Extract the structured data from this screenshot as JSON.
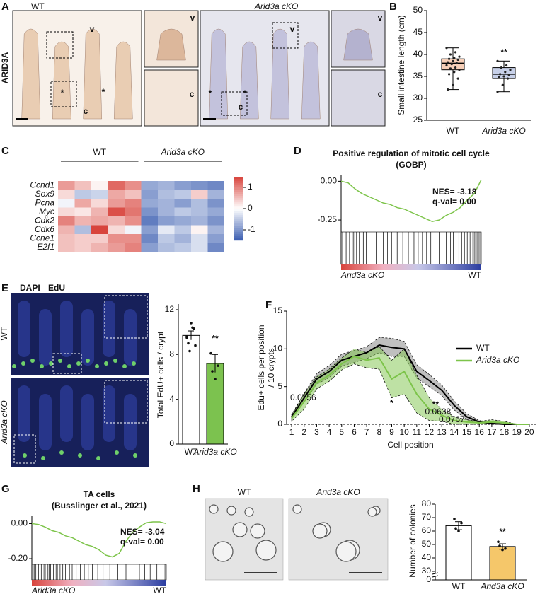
{
  "panel_labels": [
    "A",
    "B",
    "C",
    "D",
    "E",
    "F",
    "G",
    "H"
  ],
  "a": {
    "stain": "ARID3A",
    "wt": "WT",
    "cko": "Arid3a cKO",
    "markers": [
      "v",
      "*",
      "*",
      "c",
      "v",
      "c",
      "v",
      "*",
      "*",
      "c",
      "v",
      "c"
    ]
  },
  "b": {
    "type": "box",
    "ylabel": "Small intestine length (cm)",
    "categories": [
      "WT",
      "Arid3a cKO"
    ],
    "colors": [
      "#f6cfb8",
      "#c7d0e8"
    ],
    "ylim": [
      25,
      50
    ],
    "yticks": [
      25,
      30,
      35,
      40,
      45,
      50
    ],
    "significance": "**",
    "boxes": [
      {
        "min": 32,
        "q1": 36.5,
        "median": 38,
        "q3": 39,
        "max": 41.5,
        "points": [
          41.5,
          40.5,
          40,
          39.5,
          39.2,
          39,
          38.8,
          38.5,
          38.2,
          38,
          37.8,
          37.5,
          37,
          36.8,
          36.5,
          36,
          35.5,
          34.5,
          33,
          32
        ]
      },
      {
        "min": 31.5,
        "q1": 34.5,
        "median": 35.5,
        "q3": 37,
        "max": 38.5,
        "points": [
          38.5,
          37.5,
          37,
          36.5,
          36,
          35.5,
          35.3,
          35,
          34.8,
          34.5,
          33,
          31.5
        ]
      }
    ]
  },
  "c": {
    "type": "heatmap",
    "groups": [
      "WT",
      "Arid3a cKO"
    ],
    "rows": [
      "Ccnd1",
      "Sox9",
      "Pcna",
      "Myc",
      "Cdk2",
      "Cdk6",
      "Ccne1",
      "E2f1"
    ],
    "values": [
      [
        0.8,
        0.5,
        0.1,
        1.2,
        0.9,
        -0.8,
        -0.7,
        -0.9,
        -1.0,
        -1.1
      ],
      [
        0.3,
        -0.5,
        -0.4,
        0.7,
        0.5,
        -0.9,
        -0.6,
        -0.5,
        0.4,
        -0.7
      ],
      [
        -0.1,
        0.7,
        0.3,
        0.8,
        1.0,
        -0.8,
        -0.7,
        -0.9,
        -0.6,
        -1.0
      ],
      [
        0.3,
        0.2,
        0.6,
        1.4,
        1.1,
        -1.0,
        -0.7,
        -0.5,
        -0.6,
        -0.8
      ],
      [
        1.0,
        0.6,
        0.7,
        0.6,
        0.9,
        -1.2,
        -0.9,
        -0.8,
        -0.7,
        -1.0
      ],
      [
        0.6,
        -0.6,
        1.5,
        0.3,
        -0.1,
        -0.9,
        -0.2,
        -0.5,
        0.1,
        -0.7
      ],
      [
        0.5,
        0.4,
        0.4,
        0.9,
        0.9,
        -1.1,
        -0.5,
        -0.7,
        -0.3,
        -0.9
      ],
      [
        0.5,
        0.4,
        0.6,
        0.8,
        1.0,
        -0.9,
        -0.6,
        -0.5,
        -0.3,
        -1.1
      ]
    ],
    "colormap": [
      "#3a5db0",
      "#ffffff",
      "#d8443c"
    ],
    "clim": [
      -1.5,
      1.5
    ],
    "colorbar_ticks": [
      1,
      0,
      -1
    ]
  },
  "d": {
    "type": "gsea",
    "title": "Positive regulation of mitotic cell cycle",
    "subtitle": "(GOBP)",
    "nes": "NES= -3.18",
    "qval": "q-val= 0.00",
    "color": "#7dc44a",
    "x": [
      0,
      5,
      10,
      15,
      20,
      25,
      30,
      35,
      40,
      45,
      50,
      55,
      60,
      65,
      70,
      75,
      80,
      85,
      90,
      95,
      100
    ],
    "values": [
      0,
      -0.01,
      -0.05,
      -0.08,
      -0.1,
      -0.12,
      -0.14,
      -0.15,
      -0.17,
      -0.18,
      -0.2,
      -0.22,
      -0.24,
      -0.26,
      -0.25,
      -0.22,
      -0.2,
      -0.17,
      -0.12,
      -0.08,
      0.01
    ],
    "xlim": [
      0,
      100
    ],
    "ylim": [
      -0.3,
      0.02
    ],
    "yticks": [
      {
        "value": 0,
        "label": "0.00"
      },
      {
        "value": -0.25,
        "label": "-0.25"
      }
    ],
    "hits": [
      1,
      3,
      4,
      6,
      8,
      9,
      11,
      13,
      15,
      16,
      18,
      20,
      22,
      25,
      27,
      30,
      33,
      36,
      40,
      44,
      48,
      52,
      55,
      58,
      61,
      64,
      67,
      70,
      72,
      75,
      78,
      80,
      82,
      84,
      86,
      88,
      90,
      92,
      94,
      95,
      96,
      97,
      98,
      99
    ],
    "left_label": "Arid3a cKO",
    "right_label": "WT"
  },
  "e": {
    "type": "bar",
    "stains": [
      "DAPI",
      "EdU"
    ],
    "stain_colors": [
      "#3b4fc4",
      "#6fd06a"
    ],
    "rows": [
      "WT",
      "Arid3a cKO"
    ],
    "ylabel": "Total EdU+ cells / crypt",
    "categories": [
      "WT",
      "Arid3a cKO"
    ],
    "values": [
      9.7,
      7.2
    ],
    "errors": [
      0.4,
      0.8
    ],
    "points": [
      [
        9.5,
        10.3,
        10.8,
        9.0,
        8.8,
        10.4,
        8.3,
        9.6
      ],
      [
        8.1,
        7.0,
        5.8,
        6.5
      ]
    ],
    "colors": [
      "#ffffff",
      "#7cc24f"
    ],
    "ylim": [
      0,
      12.5
    ],
    "yticks": [
      0,
      4,
      8,
      12
    ],
    "significance": "**"
  },
  "f": {
    "type": "line",
    "ylabel": [
      "Edu+ cells per position",
      "/ 10 crypts"
    ],
    "xlabel": "Cell position",
    "x": [
      1,
      2,
      3,
      4,
      5,
      6,
      7,
      8,
      9,
      10,
      11,
      12,
      13,
      14,
      15,
      16,
      17,
      18,
      19,
      20
    ],
    "xlim": [
      0.6,
      20.4
    ],
    "xticks": [
      1,
      2,
      3,
      4,
      5,
      6,
      7,
      8,
      9,
      10,
      11,
      12,
      13,
      14,
      15,
      16,
      17,
      18,
      19,
      20
    ],
    "ylim": [
      0,
      15
    ],
    "yticks": [
      0,
      5,
      10,
      15
    ],
    "series": [
      {
        "name": "WT",
        "color": "#000000",
        "values": [
          1,
          3.5,
          6,
          7,
          8.5,
          9,
          9.5,
          10.5,
          10.2,
          10,
          7,
          5.8,
          4.5,
          2.5,
          1,
          0.3,
          0.1,
          0,
          0,
          0
        ],
        "error": [
          0.3,
          0.6,
          0.7,
          0.8,
          0.8,
          0.8,
          0.8,
          1.0,
          1.2,
          1.0,
          0.9,
          0.8,
          0.7,
          0.6,
          0.4,
          0.2,
          0.1,
          0,
          0,
          0
        ]
      },
      {
        "name": "Arid3a cKO",
        "color": "#7dc44a",
        "values": [
          0.8,
          3,
          5.5,
          6.5,
          8,
          9,
          8.5,
          8.8,
          6,
          7,
          4,
          2,
          1.2,
          0.5,
          0.3,
          0.2,
          0.3,
          0.2,
          0,
          0
        ],
        "error": [
          0.4,
          1.0,
          0.8,
          0.8,
          0.8,
          1.0,
          1.0,
          1.5,
          2.5,
          3.0,
          2.5,
          1.5,
          0.8,
          0.5,
          0.3,
          0.2,
          0.3,
          0.2,
          0,
          0
        ]
      }
    ],
    "annotations": [
      "0.0756",
      "*",
      "**",
      "0.0638",
      "0.0767"
    ]
  },
  "g": {
    "type": "gsea",
    "title": "TA cells",
    "subtitle": "(Busslinger et al., 2021)",
    "nes": "NES= -3.04",
    "qval": "q-val= 0.00",
    "color": "#7dc44a",
    "x": [
      0,
      5,
      10,
      15,
      20,
      25,
      30,
      35,
      40,
      45,
      50,
      55,
      60,
      65,
      70,
      75,
      80,
      85,
      90,
      95,
      100
    ],
    "values": [
      0,
      -0.005,
      -0.02,
      -0.04,
      -0.05,
      -0.07,
      -0.08,
      -0.1,
      -0.12,
      -0.13,
      -0.15,
      -0.18,
      -0.19,
      -0.17,
      -0.1,
      -0.05,
      -0.02,
      0.005,
      0.01,
      0.01,
      0
    ],
    "xlim": [
      0,
      100
    ],
    "ylim": [
      -0.22,
      0.03
    ],
    "yticks": [
      {
        "value": 0,
        "label": "0.00"
      },
      {
        "value": -0.2,
        "label": "-0.20"
      }
    ],
    "hits": [
      1,
      2,
      3,
      5,
      6,
      7,
      9,
      10,
      12,
      13,
      14,
      16,
      18,
      19,
      21,
      23,
      25,
      28,
      30,
      33,
      36,
      39,
      42,
      45,
      49,
      53,
      58,
      64,
      70,
      76,
      80,
      84,
      88,
      93,
      96,
      99
    ],
    "left_label": "Arid3a cKO",
    "right_label": "WT"
  },
  "h": {
    "type": "bar",
    "wt": "WT",
    "cko": "Arid3a cKO",
    "ylabel": "Number of colonies",
    "categories": [
      "WT",
      "Arid3a cKO"
    ],
    "values": [
      64,
      48.5
    ],
    "errors": [
      3,
      2
    ],
    "points": [
      [
        69,
        66,
        60,
        62
      ],
      [
        52,
        47,
        46,
        49
      ]
    ],
    "colors": [
      "#ffffff",
      "#f5c76a"
    ],
    "ylim": [
      0,
      80
    ],
    "yticks": [
      0,
      30,
      40,
      50,
      60,
      70,
      80
    ],
    "axis_break": [
      0,
      30
    ],
    "significance": "**"
  }
}
